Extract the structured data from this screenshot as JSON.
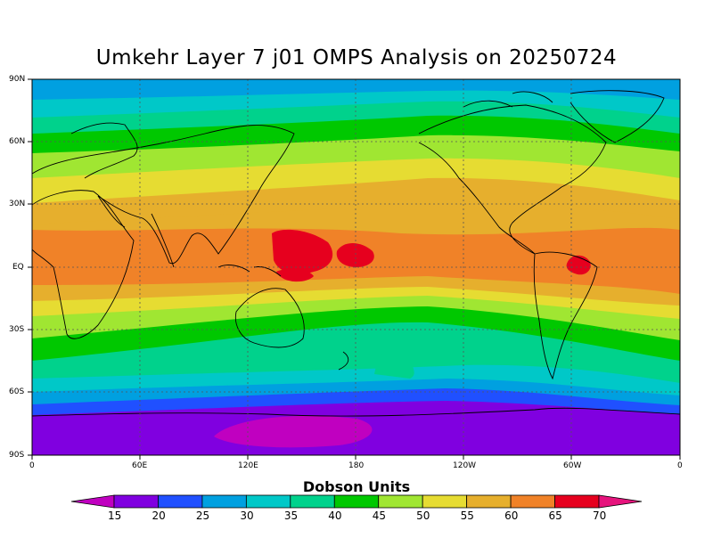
{
  "title": "Umkehr Layer 7 j01 OMPS Analysis on 20250724",
  "lat_labels": [
    "90N",
    "60N",
    "30N",
    "EQ",
    "30S",
    "60S",
    "90S"
  ],
  "lon_labels": [
    "0",
    "60E",
    "120E",
    "180",
    "120W",
    "60W",
    "0"
  ],
  "colorbar": {
    "title": "Dobson Units",
    "ticks": [
      "15",
      "20",
      "25",
      "30",
      "35",
      "40",
      "45",
      "50",
      "55",
      "60",
      "65",
      "70"
    ],
    "colors": [
      "#c000c0",
      "#8000e0",
      "#2050ff",
      "#00a0e0",
      "#00c8c8",
      "#00d28c",
      "#00c800",
      "#a0e632",
      "#e6dc32",
      "#e6af2d",
      "#f08228",
      "#e6001e",
      "#e6147d"
    ]
  }
}
